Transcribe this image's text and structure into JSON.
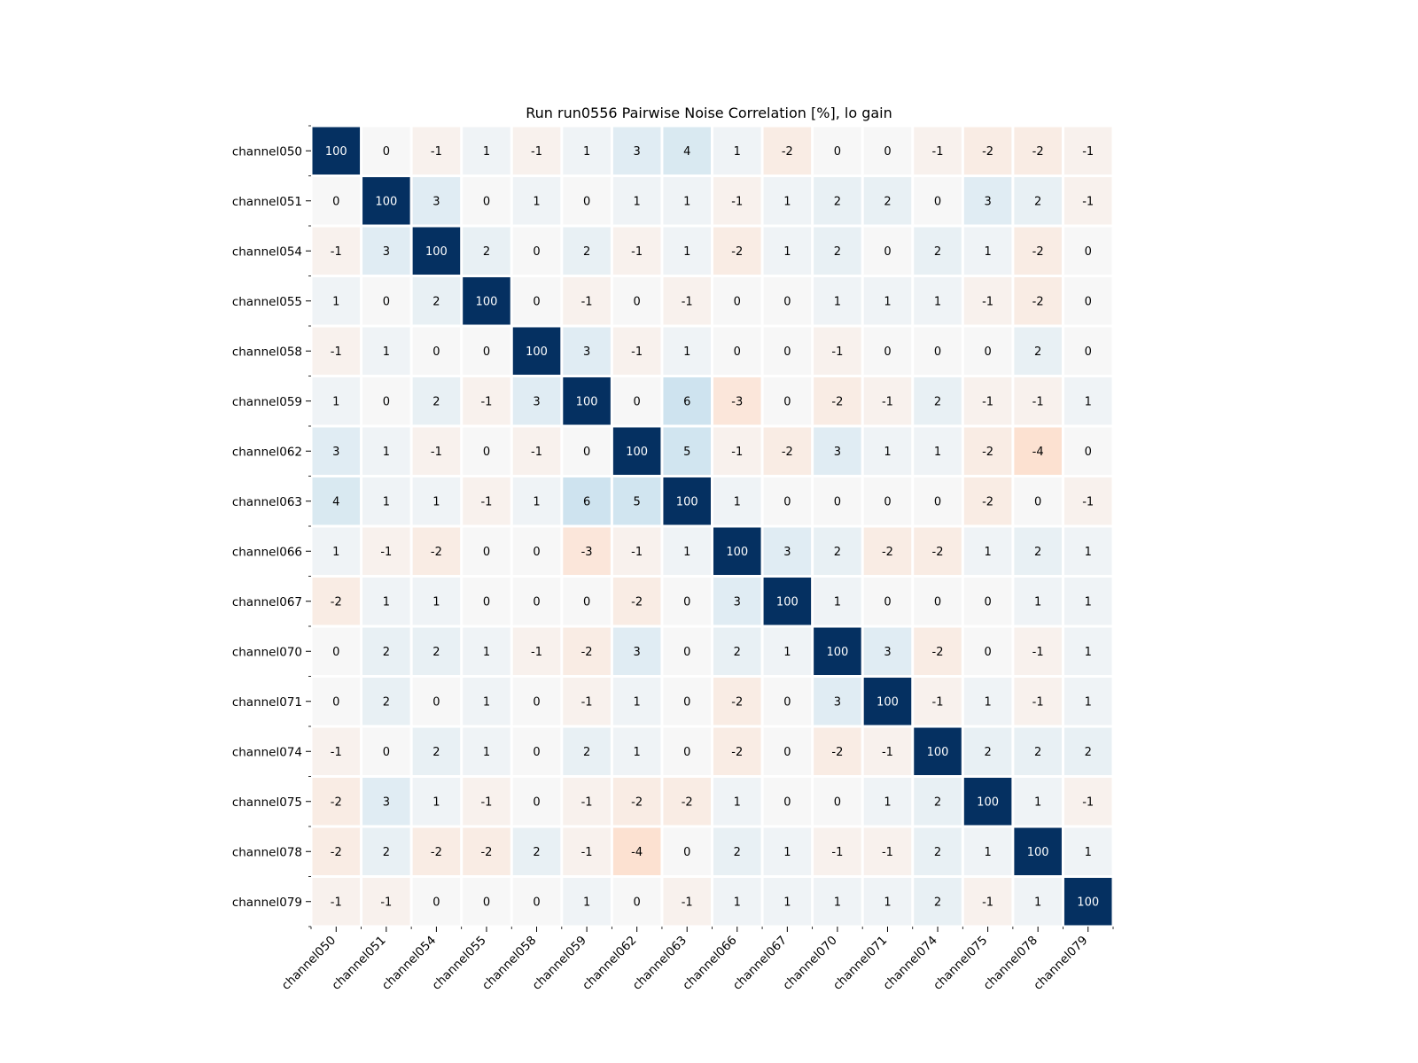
{
  "chart_data": {
    "type": "heatmap",
    "title": "Run run0556 Pairwise Noise Correlation [%], lo gain",
    "xlabel": "",
    "ylabel": "",
    "labels": [
      "channel050",
      "channel051",
      "channel054",
      "channel055",
      "channel058",
      "channel059",
      "channel062",
      "channel063",
      "channel066",
      "channel067",
      "channel070",
      "channel071",
      "channel074",
      "channel075",
      "channel078",
      "channel079"
    ],
    "matrix": [
      [
        100,
        0,
        -1,
        1,
        -1,
        1,
        3,
        4,
        1,
        -2,
        0,
        0,
        -1,
        -2,
        -2,
        -1
      ],
      [
        0,
        100,
        3,
        0,
        1,
        0,
        1,
        1,
        -1,
        1,
        2,
        2,
        0,
        3,
        2,
        -1
      ],
      [
        -1,
        3,
        100,
        2,
        0,
        2,
        -1,
        1,
        -2,
        1,
        2,
        0,
        2,
        1,
        -2,
        0
      ],
      [
        1,
        0,
        2,
        100,
        0,
        -1,
        0,
        -1,
        0,
        0,
        1,
        1,
        1,
        -1,
        -2,
        0
      ],
      [
        -1,
        1,
        0,
        0,
        100,
        3,
        -1,
        1,
        0,
        0,
        -1,
        0,
        0,
        0,
        2,
        0
      ],
      [
        1,
        0,
        2,
        -1,
        3,
        100,
        0,
        6,
        -3,
        0,
        -2,
        -1,
        2,
        -1,
        -1,
        1
      ],
      [
        3,
        1,
        -1,
        0,
        -1,
        0,
        100,
        5,
        -1,
        -2,
        3,
        1,
        1,
        -2,
        -4,
        0
      ],
      [
        4,
        1,
        1,
        -1,
        1,
        6,
        5,
        100,
        1,
        0,
        0,
        0,
        0,
        -2,
        0,
        -1
      ],
      [
        1,
        -1,
        -2,
        0,
        0,
        -3,
        -1,
        1,
        100,
        3,
        2,
        -2,
        -2,
        1,
        2,
        1
      ],
      [
        -2,
        1,
        1,
        0,
        0,
        0,
        -2,
        0,
        3,
        100,
        1,
        0,
        0,
        0,
        1,
        1
      ],
      [
        0,
        2,
        2,
        1,
        -1,
        -2,
        3,
        0,
        2,
        1,
        100,
        3,
        -2,
        0,
        -1,
        1
      ],
      [
        0,
        2,
        0,
        1,
        0,
        -1,
        1,
        0,
        -2,
        0,
        3,
        100,
        -1,
        1,
        -1,
        1
      ],
      [
        -1,
        0,
        2,
        1,
        0,
        2,
        1,
        0,
        -2,
        0,
        -2,
        -1,
        100,
        2,
        2,
        2
      ],
      [
        -2,
        3,
        1,
        -1,
        0,
        -1,
        -2,
        -2,
        1,
        0,
        0,
        1,
        2,
        100,
        1,
        -1
      ],
      [
        -2,
        2,
        -2,
        -2,
        2,
        -1,
        -4,
        0,
        2,
        1,
        -1,
        -1,
        2,
        1,
        100,
        1
      ],
      [
        -1,
        -1,
        0,
        0,
        0,
        1,
        0,
        -1,
        1,
        1,
        1,
        1,
        2,
        -1,
        1,
        100
      ]
    ],
    "colormap": "RdBu",
    "colors": {
      "positive_max": "#053061",
      "neutral": "#f7f7f7",
      "negative": "#c2582a"
    },
    "grid": false,
    "legend": "none"
  }
}
